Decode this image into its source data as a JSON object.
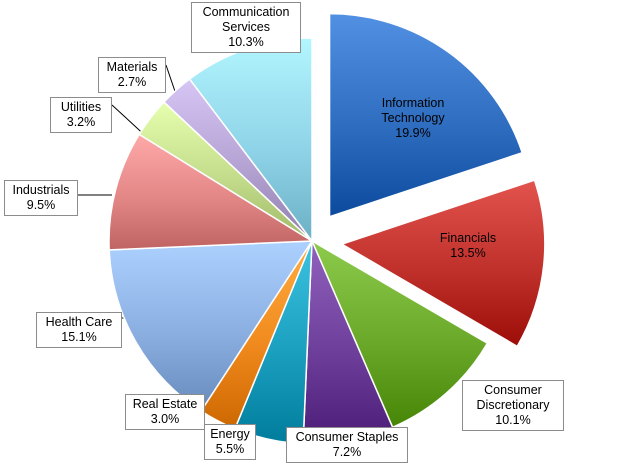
{
  "chart_data": {
    "type": "pie",
    "exploded": [
      "Information Technology",
      "Financials"
    ],
    "slices": [
      {
        "label": "Information Technology",
        "value": 19.9,
        "display": "19.9%",
        "color": "#2f6dc0",
        "name": "it"
      },
      {
        "label": "Financials",
        "value": 13.5,
        "display": "13.5%",
        "color": "#c0302b",
        "name": "financials"
      },
      {
        "label": "Consumer Discretionary",
        "value": 10.1,
        "display": "10.1%",
        "color": "#6aa82a",
        "name": "consumer-discretionary"
      },
      {
        "label": "Consumer Staples",
        "value": 7.2,
        "display": "7.2%",
        "color": "#6d3f9a",
        "name": "consumer-staples"
      },
      {
        "label": "Energy",
        "value": 5.5,
        "display": "5.5%",
        "color": "#1b9fbf",
        "name": "energy"
      },
      {
        "label": "Real Estate",
        "value": 3.0,
        "display": "3.0%",
        "color": "#f08a1e",
        "name": "real-estate"
      },
      {
        "label": "Health Care",
        "value": 15.1,
        "display": "15.1%",
        "color": "#8aaee0",
        "name": "health-care"
      },
      {
        "label": "Industrials",
        "value": 9.5,
        "display": "9.5%",
        "color": "#e38686",
        "name": "industrials"
      },
      {
        "label": "Utilities",
        "value": 3.2,
        "display": "3.2%",
        "color": "#c3dc8c",
        "name": "utilities"
      },
      {
        "label": "Materials",
        "value": 2.7,
        "display": "2.7%",
        "color": "#b3a2d2",
        "name": "materials"
      },
      {
        "label": "Communication Services",
        "value": 10.3,
        "display": "10.3%",
        "color": "#8fd3e8",
        "name": "communication-services"
      }
    ],
    "label_lines": {
      "Information Technology": [
        "Information",
        "Technology"
      ],
      "Financials": [
        "Financials"
      ],
      "Consumer Discretionary": [
        "Consumer",
        "Discretionary"
      ],
      "Consumer Staples": [
        "Consumer Staples"
      ],
      "Energy": [
        "Energy"
      ],
      "Real Estate": [
        "Real Estate"
      ],
      "Health Care": [
        "Health Care"
      ],
      "Industrials": [
        "Industrials"
      ],
      "Utilities": [
        "Utilities"
      ],
      "Materials": [
        "Materials"
      ],
      "Communication Services": [
        "Communication",
        "Services"
      ]
    }
  }
}
